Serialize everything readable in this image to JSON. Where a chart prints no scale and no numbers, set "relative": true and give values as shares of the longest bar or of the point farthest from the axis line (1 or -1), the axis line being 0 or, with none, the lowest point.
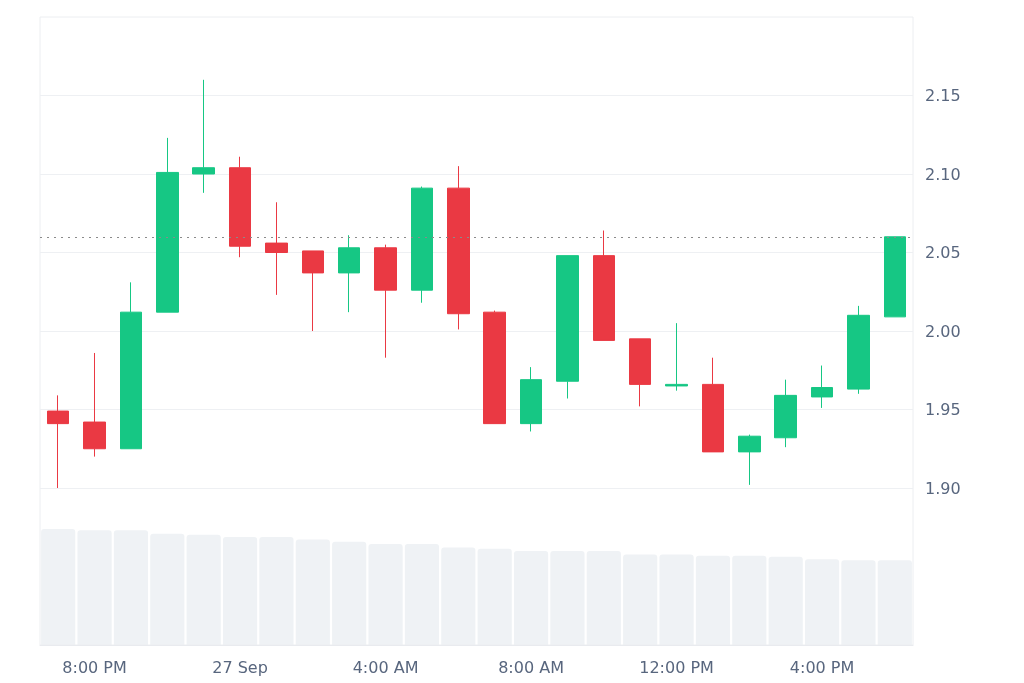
{
  "chart_data": [
    {
      "type": "candlestick",
      "categories": [
        null,
        null,
        null,
        null,
        null,
        null,
        null,
        null,
        null,
        null,
        null,
        null,
        null,
        null,
        null,
        null,
        null,
        null,
        null,
        null,
        null,
        null,
        null,
        null
      ],
      "ohlc": [
        [
          1.949,
          1.959,
          1.9,
          1.941
        ],
        [
          1.942,
          1.986,
          1.92,
          1.925
        ],
        [
          1.925,
          2.031,
          1.925,
          2.012
        ],
        [
          2.012,
          2.123,
          2.012,
          2.101
        ],
        [
          2.1,
          2.16,
          2.088,
          2.104
        ],
        [
          2.104,
          2.111,
          2.047,
          2.054
        ],
        [
          2.056,
          2.082,
          2.023,
          2.05
        ],
        [
          2.051,
          2.051,
          2.0,
          2.037
        ],
        [
          2.037,
          2.061,
          2.012,
          2.053
        ],
        [
          2.053,
          2.055,
          1.983,
          2.026
        ],
        [
          2.026,
          2.092,
          2.018,
          2.091
        ],
        [
          2.091,
          2.105,
          2.001,
          2.011
        ],
        [
          2.012,
          2.013,
          1.941,
          1.941
        ],
        [
          1.941,
          1.977,
          1.936,
          1.969
        ],
        [
          1.968,
          2.048,
          1.957,
          2.048
        ],
        [
          2.048,
          2.064,
          1.994,
          1.994
        ],
        [
          1.995,
          1.995,
          1.952,
          1.966
        ],
        [
          1.965,
          2.005,
          1.962,
          1.966
        ],
        [
          1.966,
          1.983,
          1.923,
          1.923
        ],
        [
          1.923,
          1.934,
          1.902,
          1.933
        ],
        [
          1.932,
          1.969,
          1.926,
          1.959
        ],
        [
          1.958,
          1.978,
          1.951,
          1.964
        ],
        [
          1.963,
          2.016,
          1.96,
          2.01
        ],
        [
          2.009,
          2.06,
          2.009,
          2.06
        ]
      ],
      "colors": [
        "#ea3943",
        "#ea3943",
        "#16c784",
        "#16c784",
        "#16c784",
        "#ea3943",
        "#ea3943",
        "#ea3943",
        "#16c784",
        "#ea3943",
        "#16c784",
        "#ea3943",
        "#ea3943",
        "#16c784",
        "#16c784",
        "#ea3943",
        "#ea3943",
        "#16c784",
        "#ea3943",
        "#16c784",
        "#16c784",
        "#16c784",
        "#16c784",
        "#16c784"
      ],
      "ylim": [
        1.8,
        2.2
      ],
      "yticks": [
        {
          "value": 1.9,
          "label": "1.90"
        },
        1.95,
        {
          "value": 2.0,
          "label": "2.00"
        },
        2.05,
        {
          "value": 2.1,
          "label": "2.10"
        },
        2.15
      ],
      "grid": "y",
      "tick_labels": "y",
      "ref_lines": [
        {
          "axis": "y",
          "value": 2.06,
          "label": null,
          "color": "#8a8a8a",
          "line_style": "dotted"
        }
      ]
    },
    {
      "type": "bar",
      "relative": true,
      "categories": [
        null,
        "8:00 PM",
        null,
        null,
        null,
        "27 Sep",
        null,
        null,
        null,
        "4:00 AM",
        null,
        null,
        null,
        "8:00 AM",
        null,
        null,
        null,
        "12:00 PM",
        null,
        null,
        null,
        "4:00 PM",
        null,
        null
      ],
      "color": "#eff2f5",
      "values": [
        1,
        0.99,
        0.99,
        0.96,
        0.95,
        0.93,
        0.93,
        0.91,
        0.89,
        0.87,
        0.87,
        0.84,
        0.83,
        0.81,
        0.81,
        0.81,
        0.78,
        0.78,
        0.77,
        0.77,
        0.76,
        0.74,
        0.73,
        0.73
      ],
      "tick_labels": "x"
    }
  ]
}
